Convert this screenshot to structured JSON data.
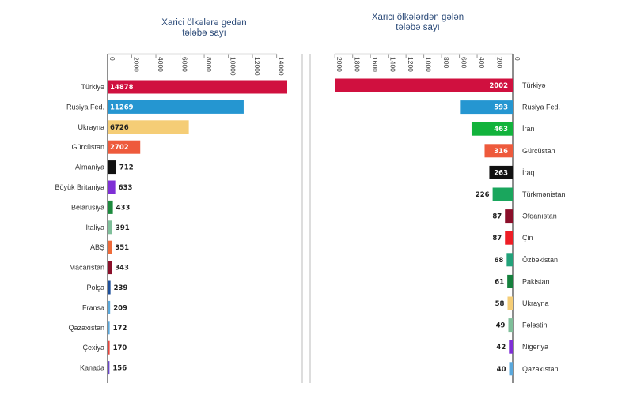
{
  "chart_data": [
    {
      "type": "bar",
      "orientation": "horizontal",
      "title": "Xarici ölkələrə gedən\ntələbə sayı",
      "categories": [
        "Türkiyə",
        "Rusiya Fed.",
        "Ukrayna",
        "Gürcüstan",
        "Almaniya",
        "Böyük Britaniya",
        "Belarusiya",
        "İtaliya",
        "ABŞ",
        "Macarıstan",
        "Polşa",
        "Fransa",
        "Qazaxıstan",
        "Çexiya",
        "Kanada"
      ],
      "values": [
        14878,
        11269,
        6726,
        2702,
        712,
        633,
        433,
        391,
        351,
        343,
        239,
        209,
        172,
        170,
        156
      ],
      "colors": [
        "#d0103f",
        "#2596d1",
        "#f5cd76",
        "#ee5a3c",
        "#111111",
        "#7f2fd6",
        "#1c8a3d",
        "#7fbf9a",
        "#ef6b3a",
        "#8b0f2a",
        "#1c4f9c",
        "#5aa8dc",
        "#5aa8dc",
        "#e8453c",
        "#6a47c9"
      ],
      "xlim": [
        0,
        15000
      ],
      "xticks": [
        0,
        2000,
        4000,
        6000,
        8000,
        10000,
        12000,
        14000
      ]
    },
    {
      "type": "bar",
      "orientation": "horizontal",
      "title": "Xarici ölkələrdən gələn\ntələbə sayı",
      "categories": [
        "Türkiyə",
        "Rusiya Fed.",
        "İran",
        "Gürcüstan",
        "İraq",
        "Türkmənistan",
        "Əfqanıstan",
        "Çin",
        "Özbəkistan",
        "Pakistan",
        "Ukrayna",
        "Fələstin",
        "Nigeriya",
        "Qazaxıstan"
      ],
      "values": [
        2002,
        593,
        463,
        316,
        263,
        226,
        87,
        87,
        68,
        61,
        58,
        49,
        42,
        40
      ],
      "colors": [
        "#d0103f",
        "#2596d1",
        "#12b33c",
        "#ee5a3c",
        "#111111",
        "#1aa65d",
        "#8b0f2a",
        "#ee1d25",
        "#22a27a",
        "#15803d",
        "#f5cd76",
        "#7fbf9a",
        "#7f2fd6",
        "#5aa8dc"
      ],
      "xlim": [
        0,
        2000
      ],
      "xticks": [
        2000,
        1800,
        1600,
        1400,
        1200,
        1000,
        800,
        600,
        400,
        200,
        0
      ],
      "reversed": true
    }
  ]
}
